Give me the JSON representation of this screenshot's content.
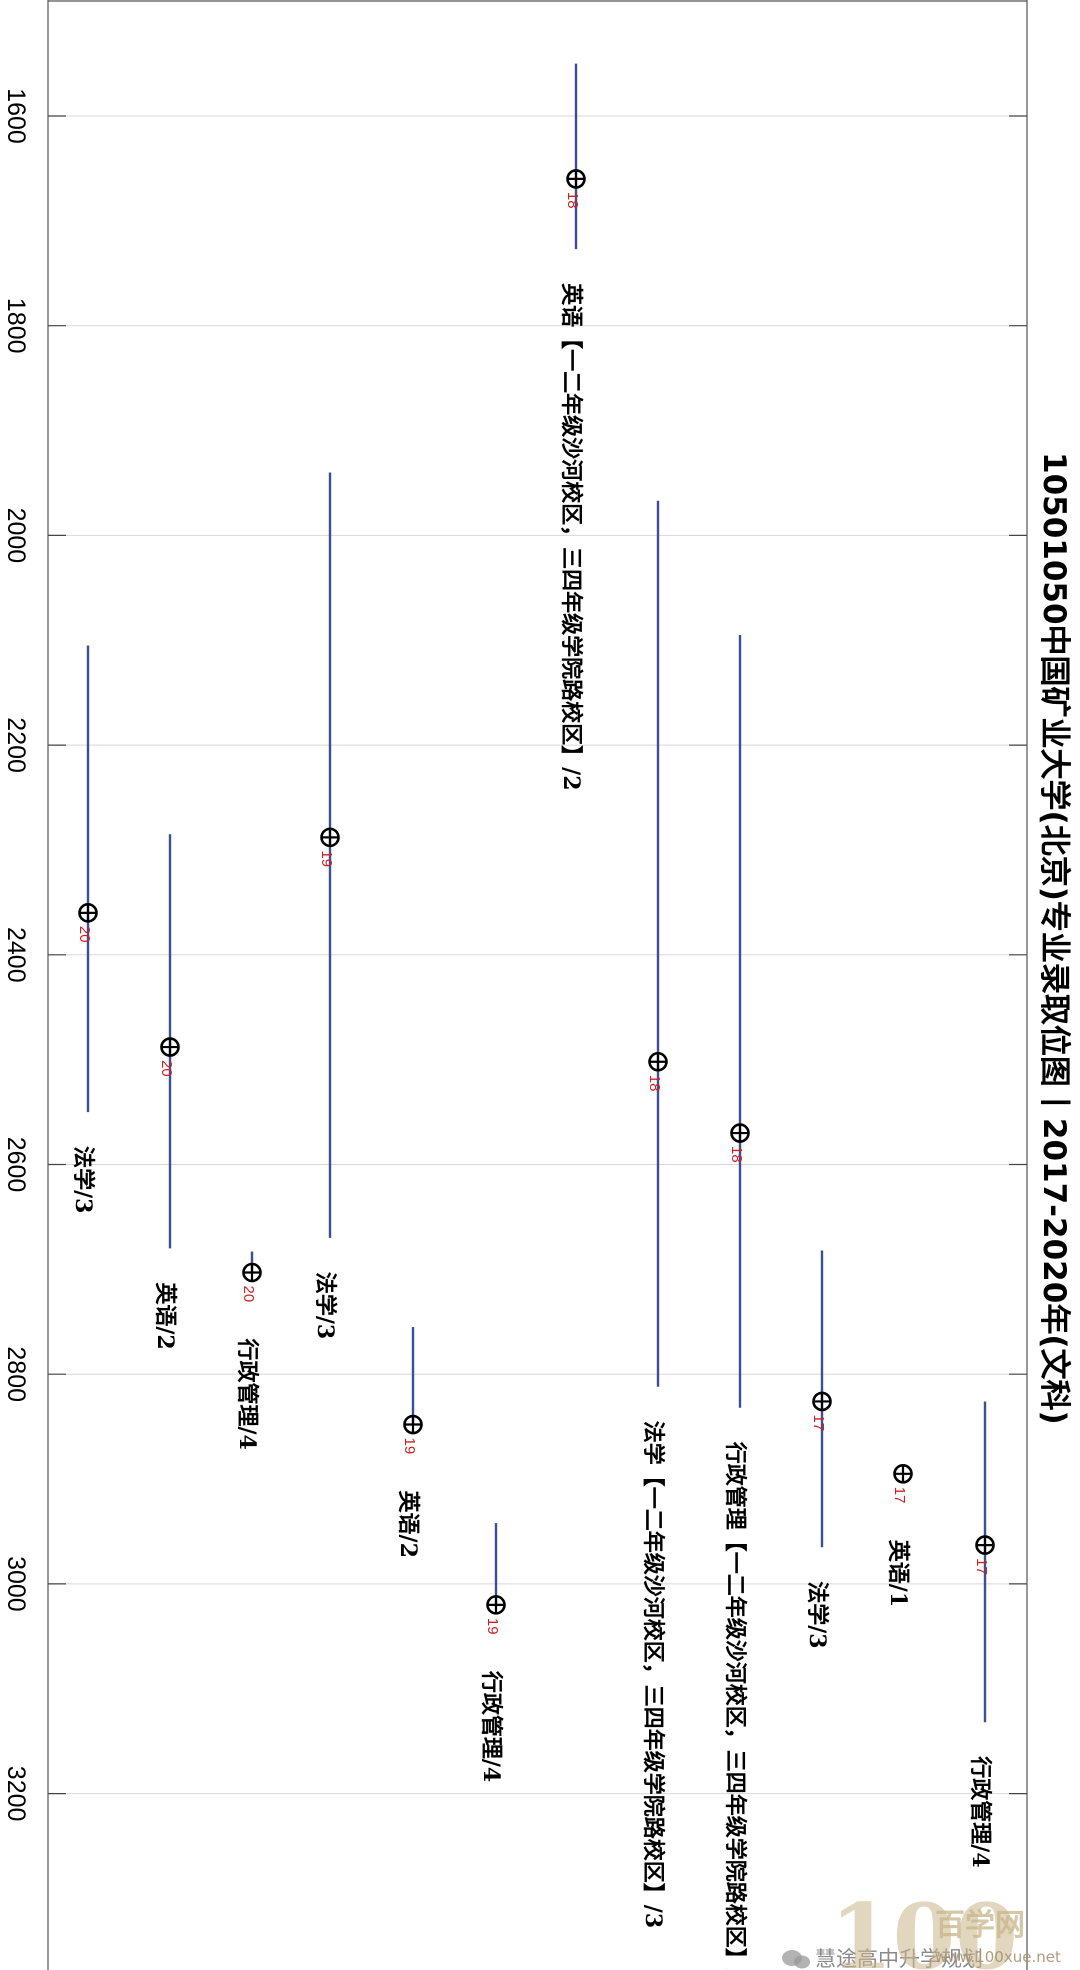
{
  "chart_data": {
    "type": "scatter",
    "title": "10501050中国矿业大学(北京)专业录取位图丨2017-2020年(文科)",
    "xlabel": "",
    "ylabel": "",
    "ylim": [
      1490,
      3380
    ],
    "y_ticks": [
      1600,
      1800,
      2000,
      2200,
      2400,
      2600,
      2800,
      3000,
      3200
    ],
    "grid": true,
    "legend": "none",
    "colors": {
      "range_line": "#3a4f96",
      "marker": "#000000",
      "year_label": "#cc2222",
      "gridline": "#d8d8d8",
      "text": "#000000"
    },
    "series": [
      {
        "label": "英语【一二年级沙河校区，三四年级学院路校区】/2",
        "year": "18",
        "point": 1660,
        "range": [
          1550,
          1727
        ]
      },
      {
        "label": "法学/3",
        "year": "20",
        "point": 2360,
        "range": [
          2105,
          2550
        ]
      },
      {
        "label": "英语/2",
        "year": "20",
        "point": 2488,
        "range": [
          2285,
          2680
        ]
      },
      {
        "label": "行政管理/4",
        "year": "20",
        "point": 2703,
        "range": [
          2683,
          2703
        ]
      },
      {
        "label": "法学/3",
        "year": "19",
        "point": 2288,
        "range": [
          1940,
          2670
        ]
      },
      {
        "label": "英语/2",
        "year": "19",
        "point": 2848,
        "range": [
          2755,
          2848
        ]
      },
      {
        "label": "行政管理/4",
        "year": "19",
        "point": 3020,
        "range": [
          2942,
          3020
        ]
      },
      {
        "label": "法学【一二年级沙河校区，三四年级学院路校区】/3",
        "year": "18",
        "point": 2502,
        "range": [
          1967,
          2812
        ]
      },
      {
        "label": "行政管理【一二年级沙河校区，三四年级学院路校区】/4",
        "year": "18",
        "point": 2570,
        "range": [
          2095,
          2832
        ]
      },
      {
        "label": "法学/3",
        "year": "17",
        "point": 2826,
        "range": [
          2682,
          2965
        ]
      },
      {
        "label": "英语/1",
        "year": "17",
        "point": 2895,
        "range": [
          2895,
          2895
        ]
      },
      {
        "label": "行政管理/4",
        "year": "17",
        "point": 2963,
        "range": [
          2826,
          3132
        ]
      }
    ]
  },
  "watermark": {
    "wechat_text": "慧途高中升学规划",
    "logo_number": "100",
    "logo_text": "百学网",
    "logo_url": "www.100xue.net"
  }
}
